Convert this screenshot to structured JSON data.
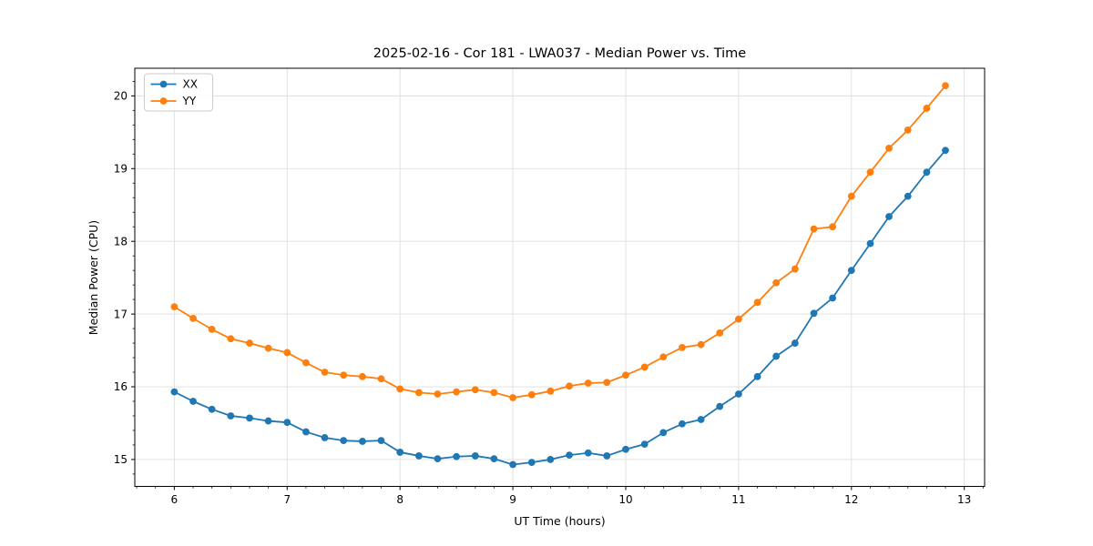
{
  "chart_data": {
    "type": "line",
    "title": "2025-02-16 - Cor 181 - LWA037 - Median Power vs. Time",
    "xlabel": "UT Time (hours)",
    "ylabel": "Median Power (CPU)",
    "xlim": [
      5.65,
      13.18
    ],
    "ylim": [
      14.63,
      20.38
    ],
    "x_ticks": [
      6,
      7,
      8,
      9,
      10,
      11,
      12,
      13
    ],
    "y_ticks": [
      15,
      16,
      17,
      18,
      19,
      20
    ],
    "x_minor_step": 0.16667,
    "y_minor_step": 0.2,
    "grid": true,
    "grid_color": "#dedede",
    "legend_position": "upper-left",
    "x": [
      6.0,
      6.167,
      6.333,
      6.5,
      6.667,
      6.833,
      7.0,
      7.167,
      7.333,
      7.5,
      7.667,
      7.833,
      8.0,
      8.167,
      8.333,
      8.5,
      8.667,
      8.833,
      9.0,
      9.167,
      9.333,
      9.5,
      9.667,
      9.833,
      10.0,
      10.167,
      10.333,
      10.5,
      10.667,
      10.833,
      11.0,
      11.167,
      11.333,
      11.5,
      11.667,
      11.833,
      12.0,
      12.167,
      12.333,
      12.5,
      12.667,
      12.833
    ],
    "series": [
      {
        "name": "XX",
        "color": "#1f77b4",
        "values": [
          15.93,
          15.8,
          15.69,
          15.6,
          15.57,
          15.53,
          15.51,
          15.38,
          15.3,
          15.26,
          15.25,
          15.26,
          15.1,
          15.05,
          15.01,
          15.04,
          15.05,
          15.01,
          14.93,
          14.96,
          15.0,
          15.06,
          15.09,
          15.05,
          15.14,
          15.21,
          15.37,
          15.49,
          15.55,
          15.73,
          15.9,
          16.14,
          16.42,
          16.6,
          17.01,
          17.22,
          17.6,
          17.97,
          18.34,
          18.62,
          18.95,
          19.25
        ]
      },
      {
        "name": "YY",
        "color": "#ff7f0e",
        "values": [
          17.1,
          16.94,
          16.79,
          16.66,
          16.6,
          16.53,
          16.47,
          16.33,
          16.2,
          16.16,
          16.14,
          16.11,
          15.97,
          15.92,
          15.9,
          15.93,
          15.96,
          15.92,
          15.85,
          15.89,
          15.94,
          16.01,
          16.05,
          16.06,
          16.16,
          16.27,
          16.41,
          16.54,
          16.58,
          16.74,
          16.93,
          17.16,
          17.43,
          17.62,
          18.17,
          18.2,
          18.62,
          18.95,
          19.28,
          19.53,
          19.83,
          20.14
        ]
      }
    ]
  }
}
